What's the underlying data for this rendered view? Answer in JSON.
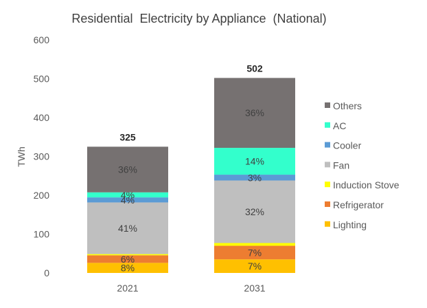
{
  "chart_data": {
    "type": "bar",
    "stacked": true,
    "title": "Residential  Electricity by Appliance  (National)",
    "ylabel": "TWh",
    "xlabel": "",
    "ylim": [
      0,
      600
    ],
    "yticks": [
      0,
      100,
      200,
      300,
      400,
      500,
      600
    ],
    "grid": false,
    "legend_position": "right",
    "categories": [
      "2021",
      "2031"
    ],
    "totals": [
      325,
      502
    ],
    "series": [
      {
        "name": "Lighting",
        "color": "#FFC000",
        "values": [
          26,
          35
        ],
        "labels": [
          "8%",
          "7%"
        ]
      },
      {
        "name": "Refrigerator",
        "color": "#ED7D31",
        "values": [
          19.5,
          35
        ],
        "labels": [
          "6%",
          "7%"
        ]
      },
      {
        "name": "Induction Stove",
        "color": "#FFFF00",
        "values": [
          3,
          7
        ],
        "labels": [
          "",
          ""
        ]
      },
      {
        "name": "Fan",
        "color": "#BFBFBF",
        "values": [
          133,
          161
        ],
        "labels": [
          "41%",
          "32%"
        ]
      },
      {
        "name": "Cooler",
        "color": "#5B9BD5",
        "values": [
          13,
          15
        ],
        "labels": [
          "4%",
          "3%"
        ]
      },
      {
        "name": "AC",
        "color": "#33FFCC",
        "values": [
          13,
          69
        ],
        "labels": [
          "4%",
          "14%"
        ]
      },
      {
        "name": "Others",
        "color": "#767171",
        "values": [
          117.5,
          180
        ],
        "labels": [
          "36%",
          "36%"
        ]
      }
    ],
    "legend_order": [
      "Others",
      "AC",
      "Cooler",
      "Fan",
      "Induction Stove",
      "Refrigerator",
      "Lighting"
    ]
  }
}
